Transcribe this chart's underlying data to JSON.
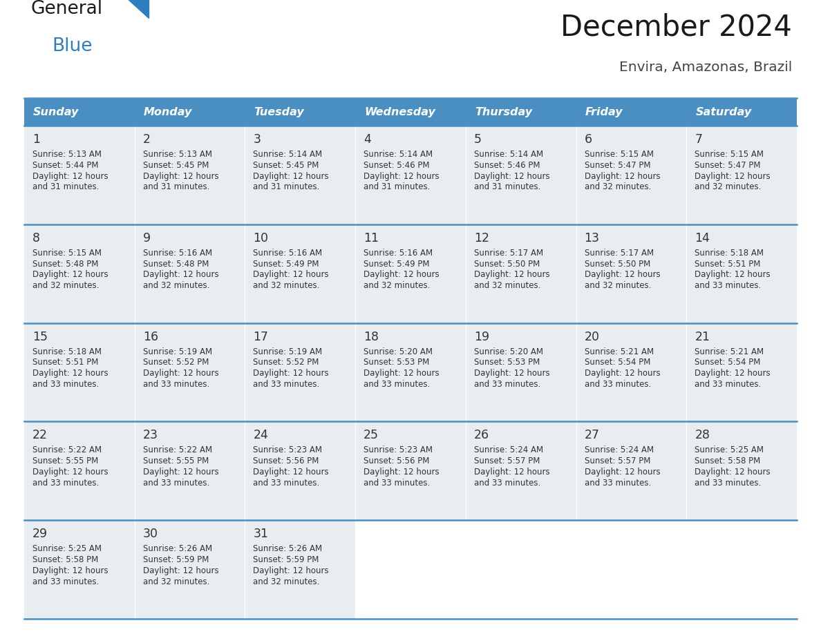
{
  "title": "December 2024",
  "subtitle": "Envira, Amazonas, Brazil",
  "days_of_week": [
    "Sunday",
    "Monday",
    "Tuesday",
    "Wednesday",
    "Thursday",
    "Friday",
    "Saturday"
  ],
  "header_bg": "#4a8fc2",
  "header_text_color": "#ffffff",
  "cell_bg": "#e8edf2",
  "cell_bg_empty": "#ffffff",
  "border_color": "#4a8fc2",
  "title_color": "#1a1a1a",
  "subtitle_color": "#444444",
  "day_number_color": "#333333",
  "cell_text_color": "#333333",
  "logo_color1": "#1a1a1a",
  "logo_color2": "#2e7ec0",
  "logo_triangle_color": "#2e7ec0",
  "calendar_data": [
    [
      {
        "day": 1,
        "sunrise": "5:13 AM",
        "sunset": "5:44 PM",
        "daylight": "12 hours and 31 minutes."
      },
      {
        "day": 2,
        "sunrise": "5:13 AM",
        "sunset": "5:45 PM",
        "daylight": "12 hours and 31 minutes."
      },
      {
        "day": 3,
        "sunrise": "5:14 AM",
        "sunset": "5:45 PM",
        "daylight": "12 hours and 31 minutes."
      },
      {
        "day": 4,
        "sunrise": "5:14 AM",
        "sunset": "5:46 PM",
        "daylight": "12 hours and 31 minutes."
      },
      {
        "day": 5,
        "sunrise": "5:14 AM",
        "sunset": "5:46 PM",
        "daylight": "12 hours and 31 minutes."
      },
      {
        "day": 6,
        "sunrise": "5:15 AM",
        "sunset": "5:47 PM",
        "daylight": "12 hours and 32 minutes."
      },
      {
        "day": 7,
        "sunrise": "5:15 AM",
        "sunset": "5:47 PM",
        "daylight": "12 hours and 32 minutes."
      }
    ],
    [
      {
        "day": 8,
        "sunrise": "5:15 AM",
        "sunset": "5:48 PM",
        "daylight": "12 hours and 32 minutes."
      },
      {
        "day": 9,
        "sunrise": "5:16 AM",
        "sunset": "5:48 PM",
        "daylight": "12 hours and 32 minutes."
      },
      {
        "day": 10,
        "sunrise": "5:16 AM",
        "sunset": "5:49 PM",
        "daylight": "12 hours and 32 minutes."
      },
      {
        "day": 11,
        "sunrise": "5:16 AM",
        "sunset": "5:49 PM",
        "daylight": "12 hours and 32 minutes."
      },
      {
        "day": 12,
        "sunrise": "5:17 AM",
        "sunset": "5:50 PM",
        "daylight": "12 hours and 32 minutes."
      },
      {
        "day": 13,
        "sunrise": "5:17 AM",
        "sunset": "5:50 PM",
        "daylight": "12 hours and 32 minutes."
      },
      {
        "day": 14,
        "sunrise": "5:18 AM",
        "sunset": "5:51 PM",
        "daylight": "12 hours and 33 minutes."
      }
    ],
    [
      {
        "day": 15,
        "sunrise": "5:18 AM",
        "sunset": "5:51 PM",
        "daylight": "12 hours and 33 minutes."
      },
      {
        "day": 16,
        "sunrise": "5:19 AM",
        "sunset": "5:52 PM",
        "daylight": "12 hours and 33 minutes."
      },
      {
        "day": 17,
        "sunrise": "5:19 AM",
        "sunset": "5:52 PM",
        "daylight": "12 hours and 33 minutes."
      },
      {
        "day": 18,
        "sunrise": "5:20 AM",
        "sunset": "5:53 PM",
        "daylight": "12 hours and 33 minutes."
      },
      {
        "day": 19,
        "sunrise": "5:20 AM",
        "sunset": "5:53 PM",
        "daylight": "12 hours and 33 minutes."
      },
      {
        "day": 20,
        "sunrise": "5:21 AM",
        "sunset": "5:54 PM",
        "daylight": "12 hours and 33 minutes."
      },
      {
        "day": 21,
        "sunrise": "5:21 AM",
        "sunset": "5:54 PM",
        "daylight": "12 hours and 33 minutes."
      }
    ],
    [
      {
        "day": 22,
        "sunrise": "5:22 AM",
        "sunset": "5:55 PM",
        "daylight": "12 hours and 33 minutes."
      },
      {
        "day": 23,
        "sunrise": "5:22 AM",
        "sunset": "5:55 PM",
        "daylight": "12 hours and 33 minutes."
      },
      {
        "day": 24,
        "sunrise": "5:23 AM",
        "sunset": "5:56 PM",
        "daylight": "12 hours and 33 minutes."
      },
      {
        "day": 25,
        "sunrise": "5:23 AM",
        "sunset": "5:56 PM",
        "daylight": "12 hours and 33 minutes."
      },
      {
        "day": 26,
        "sunrise": "5:24 AM",
        "sunset": "5:57 PM",
        "daylight": "12 hours and 33 minutes."
      },
      {
        "day": 27,
        "sunrise": "5:24 AM",
        "sunset": "5:57 PM",
        "daylight": "12 hours and 33 minutes."
      },
      {
        "day": 28,
        "sunrise": "5:25 AM",
        "sunset": "5:58 PM",
        "daylight": "12 hours and 33 minutes."
      }
    ],
    [
      {
        "day": 29,
        "sunrise": "5:25 AM",
        "sunset": "5:58 PM",
        "daylight": "12 hours and 33 minutes."
      },
      {
        "day": 30,
        "sunrise": "5:26 AM",
        "sunset": "5:59 PM",
        "daylight": "12 hours and 32 minutes."
      },
      {
        "day": 31,
        "sunrise": "5:26 AM",
        "sunset": "5:59 PM",
        "daylight": "12 hours and 32 minutes."
      },
      null,
      null,
      null,
      null
    ]
  ]
}
